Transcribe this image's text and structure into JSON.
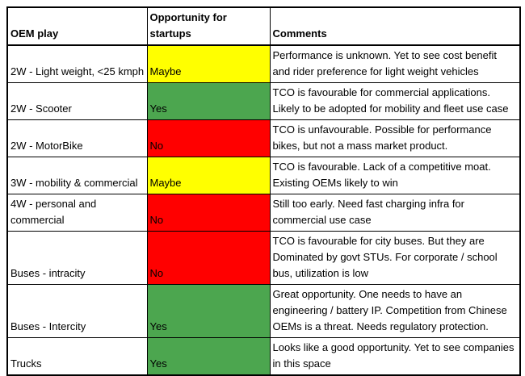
{
  "table": {
    "headers": {
      "play": "OEM play",
      "opportunity": "Opportunity for startups",
      "comments": "Comments"
    },
    "rows": [
      {
        "play": "2W - Light weight, <25 kmph",
        "opportunity": "Maybe",
        "color": "#ffff00",
        "comment": "Performance is unknown. Yet to see cost benefit and rider preference for light weight vehicles"
      },
      {
        "play": "2W - Scooter",
        "opportunity": "Yes",
        "color": "#4ca64f",
        "comment": "TCO is favourable for commercial applications. Likely to be adopted for mobility and fleet use case"
      },
      {
        "play": "2W - MotorBike",
        "opportunity": "No",
        "color": "#ff0000",
        "comment": "TCO is unfavourable. Possible for performance bikes, but not a mass market product."
      },
      {
        "play": "3W - mobility & commercial",
        "opportunity": "Maybe",
        "color": "#ffff00",
        "comment": "TCO is favourable. Lack of a competitive moat. Existing OEMs likely to win"
      },
      {
        "play": "4W - personal and commercial",
        "opportunity": "No",
        "color": "#ff0000",
        "comment": "Still too early. Need fast charging infra for commercial use case"
      },
      {
        "play": "Buses - intracity",
        "opportunity": "No",
        "color": "#ff0000",
        "comment": "TCO is favourable for city buses. But they are Dominated by govt STUs. For corporate / school bus, utilization is low"
      },
      {
        "play": "Buses - Intercity",
        "opportunity": "Yes",
        "color": "#4ca64f",
        "comment": "Great opportunity. One needs to have an engineering / battery IP. Competition from Chinese OEMs is a threat. Needs regulatory protection."
      },
      {
        "play": "Trucks",
        "opportunity": "Yes",
        "color": "#4ca64f",
        "comment": "Looks like a good opportunity. Yet to see companies in this space"
      }
    ]
  },
  "colors": {
    "maybe_yellow": "#ffff00",
    "yes_green": "#4ca64f",
    "no_red": "#ff0000",
    "border": "#000000",
    "text": "#000000",
    "background": "#ffffff"
  }
}
